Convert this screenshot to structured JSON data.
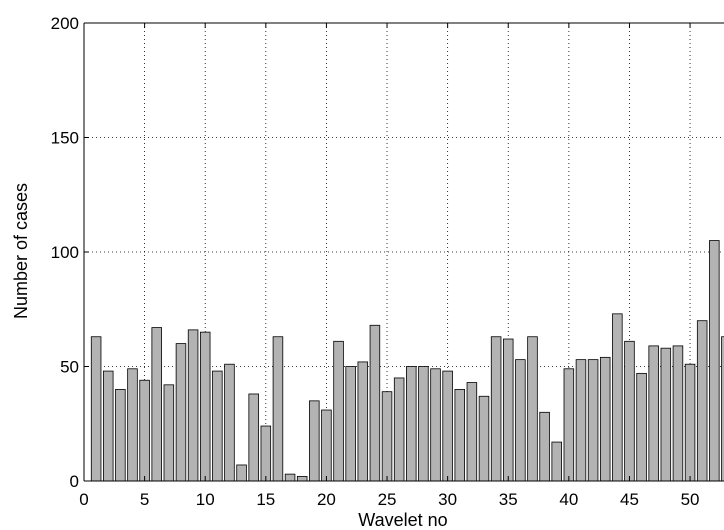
{
  "chart_data": {
    "type": "bar",
    "title": "",
    "xlabel": "Wavelet no",
    "ylabel": "Number of cases",
    "xlim": [
      0,
      52.8
    ],
    "ylim": [
      0,
      200
    ],
    "xticks": [
      0,
      5,
      10,
      15,
      20,
      25,
      30,
      35,
      40,
      45,
      50
    ],
    "yticks": [
      0,
      50,
      100,
      150,
      200
    ],
    "grid": true,
    "bar_color": "#b3b3b3",
    "bar_edge_color": "#000000",
    "x": [
      1,
      2,
      3,
      4,
      5,
      6,
      7,
      8,
      9,
      10,
      11,
      12,
      13,
      14,
      15,
      16,
      17,
      18,
      19,
      20,
      21,
      22,
      23,
      24,
      25,
      26,
      27,
      28,
      29,
      30,
      31,
      32,
      33,
      34,
      35,
      36,
      37,
      38,
      39,
      40,
      41,
      42,
      43,
      44,
      45,
      46,
      47,
      48,
      49,
      50,
      51,
      52,
      53
    ],
    "values": [
      63,
      48,
      40,
      49,
      44,
      67,
      42,
      60,
      66,
      65,
      48,
      51,
      7,
      38,
      24,
      63,
      3,
      2,
      35,
      31,
      61,
      50,
      52,
      68,
      39,
      45,
      50,
      50,
      49,
      48,
      40,
      43,
      37,
      63,
      62,
      53,
      63,
      30,
      17,
      49,
      53,
      53,
      54,
      73,
      61,
      47,
      59,
      58,
      59,
      51,
      70,
      105,
      63
    ]
  }
}
